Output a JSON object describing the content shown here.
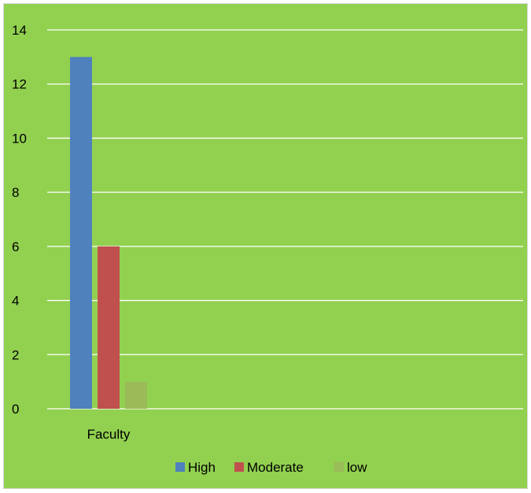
{
  "chart_data": {
    "type": "bar",
    "categories": [
      "Faculty"
    ],
    "series": [
      {
        "name": "High",
        "values": [
          13
        ],
        "color": "#4f81bd"
      },
      {
        "name": "Moderate",
        "values": [
          6
        ],
        "color": "#c0504d"
      },
      {
        "name": "low",
        "values": [
          1
        ],
        "color": "#9bbb59"
      }
    ],
    "ylim": [
      0,
      14
    ],
    "yticks": [
      0,
      2,
      4,
      6,
      8,
      10,
      12,
      14
    ],
    "grid": true,
    "legend": "bottom",
    "background_color": "#92d050",
    "gridline_color": "#ffffff"
  }
}
